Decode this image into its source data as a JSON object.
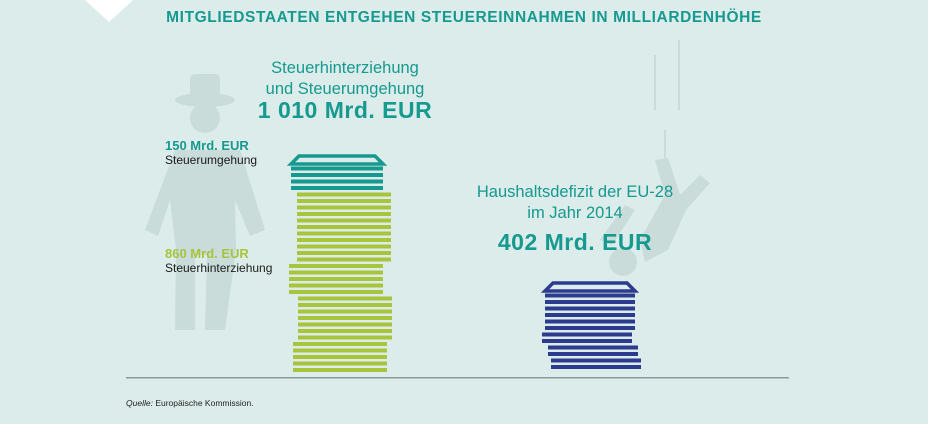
{
  "title": "MITGLIEDSTAATEN ENTGEHEN STEUEREINNAHMEN IN MILLIARDENHÖHE",
  "left_block": {
    "heading_line1": "Steuerhinterziehung",
    "heading_line2": "und Steuerumgehung",
    "total": "1 010 Mrd. EUR",
    "avoidance_value": "150 Mrd. EUR",
    "avoidance_label": "Steuerumgehung",
    "evasion_value": "860 Mrd. EUR",
    "evasion_label": "Steuerhinterziehung"
  },
  "right_block": {
    "heading_line1": "Haushaltsdefizit der EU-28",
    "heading_line2": "im Jahr 2014",
    "total": "402 Mrd. EUR"
  },
  "source_prefix": "Quelle:",
  "source_text": "Europäische Kommission.",
  "colors": {
    "teal": "#16998f",
    "green": "#a7c43c",
    "navy": "#2d3b8f",
    "background": "#dcecea",
    "silhouette": "#c9dcd9"
  },
  "chart_data": {
    "type": "bar",
    "unit": "Mrd. EUR",
    "categories": [
      "Steuerhinterziehung und Steuerumgehung",
      "Haushaltsdefizit der EU-28 im Jahr 2014"
    ],
    "series": [
      {
        "name": "Steuerhinterziehung",
        "values": [
          860,
          0
        ],
        "color": "#a7c43c"
      },
      {
        "name": "Steuerumgehung",
        "values": [
          150,
          0
        ],
        "color": "#16998f"
      },
      {
        "name": "Haushaltsdefizit",
        "values": [
          0,
          402
        ],
        "color": "#2d3b8f"
      }
    ],
    "totals": [
      1010,
      402
    ]
  }
}
